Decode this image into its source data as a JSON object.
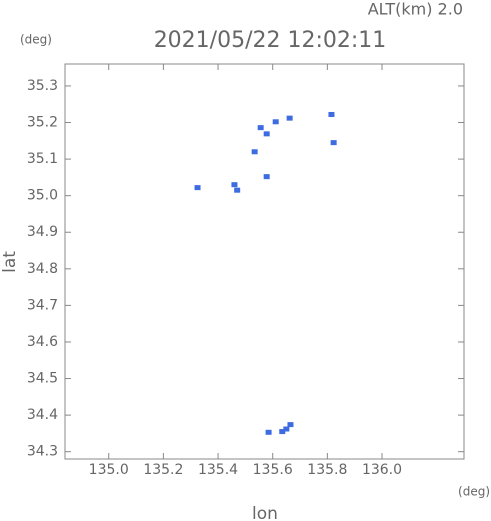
{
  "chart_data": {
    "type": "scatter",
    "title": "2021/05/22 12:02:11",
    "subtitle": "ALT(km)  2.0",
    "y_unit": "(deg)",
    "x_unit": "(deg)",
    "x_label": "lon",
    "y_label": "lat",
    "xlim": [
      134.84,
      136.3
    ],
    "ylim": [
      34.28,
      35.36
    ],
    "xticks": [
      {
        "value": 135,
        "label": "135.0"
      },
      135.2,
      135.4,
      135.6,
      135.8,
      {
        "value": 136,
        "label": "136.0"
      }
    ],
    "yticks": [
      34.3,
      34.4,
      34.5,
      34.6,
      34.7,
      34.8,
      34.9,
      {
        "value": 35,
        "label": "35.0"
      },
      35.1,
      35.2,
      35.3
    ],
    "series": [
      {
        "color": "#3d6be0",
        "x": [
          135.325,
          135.46,
          135.47,
          135.534,
          135.556,
          135.578,
          135.611,
          135.662,
          135.578,
          135.815,
          135.823,
          135.585,
          135.635,
          135.65,
          135.665
        ],
        "values": [
          35.022,
          35.03,
          35.015,
          35.12,
          35.186,
          35.169,
          35.202,
          35.212,
          35.052,
          35.222,
          35.145,
          34.353,
          34.355,
          34.362,
          34.374
        ]
      }
    ]
  }
}
